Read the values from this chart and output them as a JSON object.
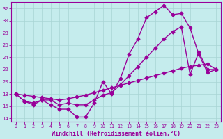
{
  "xlabel": "Windchill (Refroidissement éolien,°C)",
  "background_color": "#c5eced",
  "line_color": "#990099",
  "grid_color": "#a8d4d4",
  "xlim": [
    -0.5,
    23.5
  ],
  "ylim": [
    13.5,
    33
  ],
  "xticks": [
    0,
    1,
    2,
    3,
    4,
    5,
    6,
    7,
    8,
    9,
    10,
    11,
    12,
    13,
    14,
    15,
    16,
    17,
    18,
    19,
    20,
    21,
    22,
    23
  ],
  "yticks": [
    14,
    16,
    18,
    20,
    22,
    24,
    26,
    28,
    30,
    32
  ],
  "line1_x": [
    0,
    1,
    2,
    3,
    4,
    5,
    6,
    7,
    8,
    9,
    10,
    11,
    12,
    13,
    14,
    15,
    16,
    17,
    18,
    19,
    20,
    21,
    22,
    23
  ],
  "line1_y": [
    18.0,
    16.8,
    16.2,
    17.0,
    16.2,
    15.5,
    15.5,
    14.2,
    14.2,
    16.5,
    20.0,
    18.0,
    20.5,
    24.5,
    27.0,
    30.5,
    31.5,
    32.5,
    31.0,
    31.2,
    28.8,
    24.5,
    21.5,
    22.0
  ],
  "line2_x": [
    0,
    1,
    2,
    3,
    4,
    5,
    6,
    7,
    8,
    9,
    10,
    11,
    12,
    13,
    14,
    15,
    16,
    17,
    18,
    19,
    20,
    21,
    22,
    23
  ],
  "line2_y": [
    18.0,
    16.8,
    16.5,
    17.0,
    17.0,
    16.2,
    16.5,
    16.2,
    16.2,
    17.0,
    17.8,
    18.2,
    19.5,
    21.0,
    22.5,
    24.0,
    25.5,
    27.0,
    28.2,
    29.0,
    21.2,
    24.8,
    22.0,
    22.0
  ],
  "line3_x": [
    0,
    1,
    2,
    3,
    4,
    5,
    6,
    7,
    8,
    9,
    10,
    11,
    12,
    13,
    14,
    15,
    16,
    17,
    18,
    19,
    20,
    21,
    22,
    23
  ],
  "line3_y": [
    18.0,
    17.8,
    17.6,
    17.4,
    17.2,
    17.0,
    17.2,
    17.5,
    17.8,
    18.2,
    18.6,
    19.0,
    19.4,
    19.8,
    20.2,
    20.6,
    21.0,
    21.4,
    21.8,
    22.2,
    22.5,
    22.7,
    22.9,
    22.0
  ],
  "marker": "D",
  "markersize": 2.5,
  "linewidth": 1.0,
  "tick_fontsize": 5.0,
  "label_fontsize": 6.0
}
